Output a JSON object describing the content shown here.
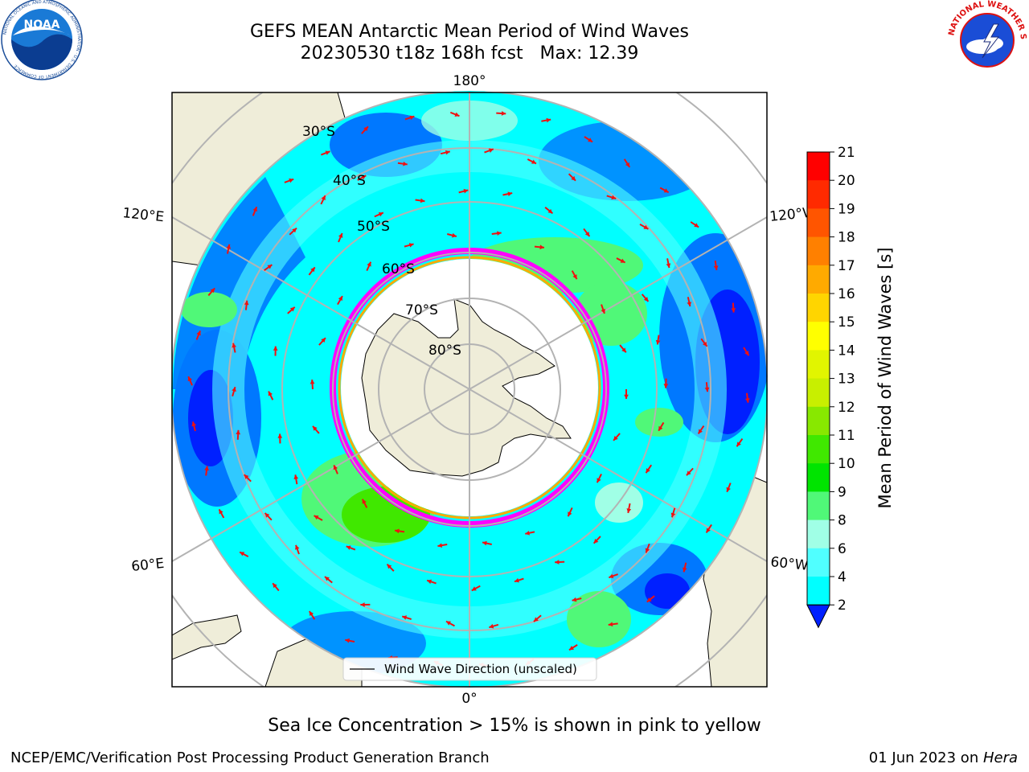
{
  "title": {
    "line1": "GEFS MEAN Antarctic Mean Period of Wind Waves",
    "line2": "20230530 t18z 168h fcst   Max: 12.39"
  },
  "logos": {
    "noaa_text": "NOAA",
    "noaa_ring_text": "NATIONAL OCEANIC AND ATMOSPHERIC ADMINISTRATION · U.S. DEPARTMENT OF COMMERCE",
    "nws_ring_text": "NATIONAL WEATHER SERVICE"
  },
  "map": {
    "longitude_labels": [
      "180°",
      "120°E",
      "120°W",
      "60°E",
      "60°W",
      "0°"
    ],
    "latitude_labels": [
      "30°S",
      "40°S",
      "50°S",
      "60°S",
      "70°S",
      "80°S"
    ],
    "legend_label": "Wind Wave Direction (unscaled)",
    "colors": {
      "land": "#efedd9",
      "ice_shelf": "#ffffff",
      "sea_ice_edge": "#ff00ff",
      "arrow": "#ee1111",
      "grid": "#b3b3b3"
    }
  },
  "colorbar": {
    "label": "Mean Period of Wind Waves [s]",
    "ticks": [
      "21",
      "20",
      "19",
      "18",
      "17",
      "16",
      "15",
      "14",
      "13",
      "12",
      "11",
      "10",
      "9",
      "8",
      "6",
      "4",
      "2"
    ],
    "extend": "min",
    "band_colors": [
      "#ff0000",
      "#ff2a00",
      "#ff5500",
      "#ff8000",
      "#ffaa00",
      "#ffd500",
      "#ffff00",
      "#e1f500",
      "#c8ef00",
      "#88e800",
      "#40e800",
      "#00e400",
      "#50f878",
      "#a0ffe6",
      "#50ffff",
      "#00ffff",
      "#00e1ff",
      "#0078ff"
    ],
    "under_color": "#0020ff"
  },
  "caption": "Sea Ice Concentration > 15% is shown in pink to yellow",
  "footer": {
    "left": "NCEP/EMC/Verification Post Processing Product Generation Branch",
    "right_prefix": "01 Jun 2023 on ",
    "right_italic": "Hera"
  }
}
